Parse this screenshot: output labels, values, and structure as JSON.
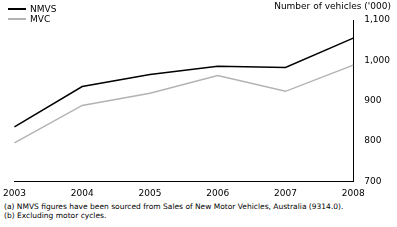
{
  "chart_data": {
    "type": "line",
    "y_label": "Number of vehicles ('000)",
    "categories": [
      "2003",
      "2004",
      "2005",
      "2006",
      "2007",
      "2008"
    ],
    "series": [
      {
        "name": "NMVS",
        "color": "#000000",
        "values": [
          835,
          935,
          965,
          985,
          982,
          1055
        ]
      },
      {
        "name": "MVC",
        "color": "#b3b3b3",
        "values": [
          795,
          888,
          918,
          962,
          923,
          988
        ]
      }
    ],
    "ylim": [
      700,
      1100
    ],
    "yticks": [
      700,
      800,
      900,
      1000,
      1100
    ],
    "grid": false,
    "legend": "top-left",
    "notes": [
      "(a) NMVS figures have been sourced from Sales of New Motor Vehicles, Australia (9314.0).",
      "(b) Excluding motor cycles."
    ]
  }
}
